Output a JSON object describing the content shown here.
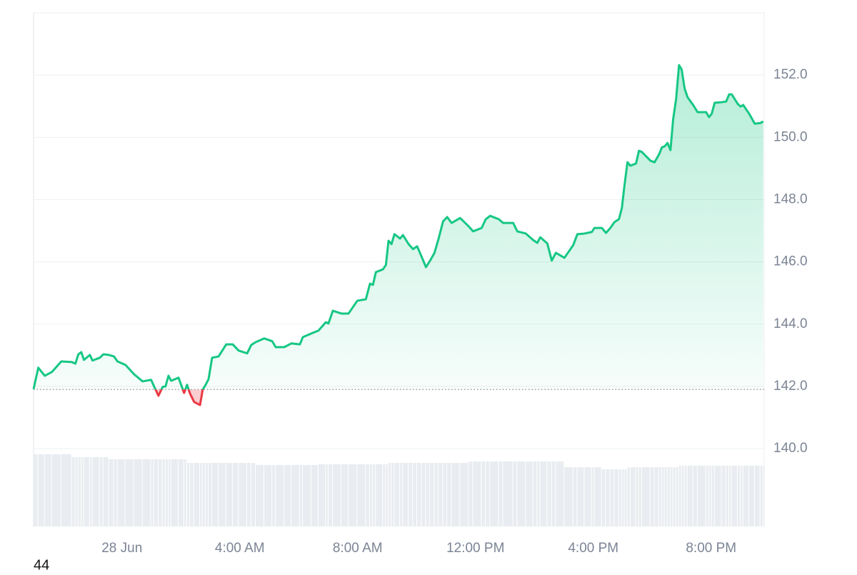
{
  "chart_data": {
    "type": "line",
    "x": [
      -3.0,
      -2.84,
      -2.62,
      -2.38,
      -2.06,
      -1.7,
      -1.58,
      -1.48,
      -1.38,
      -1.29,
      -1.09,
      -1.0,
      -0.75,
      -0.63,
      -0.44,
      -0.27,
      -0.15,
      0.12,
      0.41,
      0.7,
      0.99,
      1.09,
      1.24,
      1.38,
      1.48,
      1.58,
      1.67,
      1.92,
      2.11,
      2.21,
      2.31,
      2.45,
      2.65,
      2.74,
      2.84,
      2.94,
      3.06,
      3.28,
      3.54,
      3.76,
      3.96,
      4.25,
      4.39,
      4.54,
      4.83,
      5.1,
      5.22,
      5.51,
      5.75,
      6.04,
      6.14,
      6.43,
      6.67,
      6.92,
      7.01,
      7.16,
      7.45,
      7.69,
      7.99,
      8.28,
      8.42,
      8.52,
      8.62,
      8.86,
      8.96,
      9.05,
      9.15,
      9.25,
      9.44,
      9.54,
      9.73,
      9.88,
      10.02,
      10.17,
      10.32,
      10.46,
      10.61,
      10.75,
      10.9,
      11.04,
      11.19,
      11.48,
      11.77,
      11.92,
      12.21,
      12.35,
      12.5,
      12.79,
      12.94,
      13.28,
      13.42,
      13.71,
      13.96,
      14.1,
      14.2,
      14.44,
      14.59,
      14.73,
      15.02,
      15.32,
      15.46,
      15.7,
      15.95,
      16.04,
      16.29,
      16.43,
      16.58,
      16.72,
      16.87,
      16.97,
      17.06,
      17.16,
      17.26,
      17.45,
      17.55,
      17.65,
      17.94,
      18.08,
      18.23,
      18.33,
      18.42,
      18.52,
      18.62,
      18.71,
      18.81,
      18.91,
      19.0,
      19.1,
      19.2,
      19.39,
      19.54,
      19.83,
      19.93,
      20.02,
      20.12,
      20.36,
      20.51,
      20.61,
      20.7,
      20.9,
      21.0,
      21.09,
      21.29,
      21.48,
      21.67,
      21.77
    ],
    "values": [
      141.91,
      142.6,
      142.34,
      142.46,
      142.8,
      142.78,
      142.73,
      143.03,
      143.1,
      142.85,
      143.01,
      142.83,
      142.92,
      143.03,
      143.01,
      142.96,
      142.8,
      142.69,
      142.39,
      142.16,
      142.21,
      142.0,
      141.7,
      141.98,
      142.0,
      142.34,
      142.18,
      142.28,
      141.79,
      142.05,
      141.77,
      141.5,
      141.4,
      141.89,
      142.05,
      142.23,
      142.92,
      142.96,
      143.35,
      143.35,
      143.15,
      143.06,
      143.33,
      143.42,
      143.54,
      143.45,
      143.26,
      143.26,
      143.38,
      143.35,
      143.58,
      143.7,
      143.79,
      144.06,
      144.02,
      144.43,
      144.34,
      144.34,
      144.75,
      144.8,
      145.3,
      145.26,
      145.67,
      145.76,
      145.9,
      146.68,
      146.57,
      146.89,
      146.75,
      146.86,
      146.57,
      146.41,
      146.5,
      146.17,
      145.83,
      146.04,
      146.29,
      146.75,
      147.3,
      147.44,
      147.25,
      147.41,
      147.14,
      146.98,
      147.09,
      147.37,
      147.48,
      147.37,
      147.25,
      147.25,
      146.98,
      146.91,
      146.7,
      146.61,
      146.79,
      146.59,
      146.04,
      146.29,
      146.13,
      146.54,
      146.89,
      146.91,
      146.96,
      147.09,
      147.09,
      146.93,
      147.09,
      147.28,
      147.37,
      147.73,
      148.47,
      149.2,
      149.09,
      149.16,
      149.57,
      149.53,
      149.25,
      149.2,
      149.45,
      149.68,
      149.71,
      149.82,
      149.59,
      150.58,
      151.22,
      152.32,
      152.18,
      151.57,
      151.29,
      151.04,
      150.81,
      150.81,
      150.65,
      150.76,
      151.11,
      151.13,
      151.15,
      151.38,
      151.38,
      151.08,
      150.99,
      151.04,
      150.76,
      150.44,
      150.46,
      150.51
    ],
    "volume": [
      101,
      101,
      101,
      101,
      101,
      97,
      97,
      97,
      97,
      97,
      97,
      97,
      97,
      97,
      94,
      94,
      94,
      94,
      94,
      94,
      94,
      94,
      94,
      94,
      94,
      94,
      94,
      94,
      94,
      89,
      89,
      89,
      89,
      89,
      89,
      89,
      89,
      89,
      89,
      89,
      89,
      89,
      89,
      86,
      86,
      86,
      86,
      86,
      86,
      86,
      86,
      86,
      87,
      87,
      87,
      87,
      87,
      87,
      87,
      87,
      87,
      87,
      87,
      87,
      87,
      89,
      89,
      89,
      89,
      89,
      89,
      89,
      89,
      89,
      89,
      89,
      89,
      89,
      89,
      89,
      89,
      89,
      91,
      91,
      91,
      91,
      91,
      91,
      91,
      91,
      91,
      91,
      91,
      91,
      91,
      91,
      91,
      91,
      83,
      83,
      83,
      83,
      83,
      83,
      80,
      80,
      80,
      80,
      80,
      80,
      80,
      83,
      83,
      83,
      83,
      83,
      83,
      83,
      83,
      83,
      83,
      83,
      83,
      83,
      83,
      85,
      85,
      85,
      85,
      85,
      85,
      85,
      85,
      85,
      85,
      85,
      85,
      85,
      85,
      85,
      85,
      85,
      85,
      85,
      85,
      85
    ],
    "baseline": 141.9,
    "color": "#16c784",
    "below_color": "#ea3943",
    "volume_color": "#e9ecf0",
    "xlim": [
      -3.0,
      21.8
    ],
    "xticks": [
      {
        "value": 0,
        "label": "28 Jun"
      },
      {
        "value": 4,
        "label": "4:00 AM"
      },
      {
        "value": 8,
        "label": "8:00 AM"
      },
      {
        "value": 12,
        "label": "12:00 PM"
      },
      {
        "value": 16,
        "label": "4:00 PM"
      },
      {
        "value": 20,
        "label": "8:00 PM"
      }
    ],
    "ylim": [
      137.5,
      154
    ],
    "yticks": [
      {
        "value": 140,
        "label": "140.0"
      },
      {
        "value": 142,
        "label": "142.0"
      },
      {
        "value": 144,
        "label": "144.0"
      },
      {
        "value": 146,
        "label": "146.0"
      },
      {
        "value": 148,
        "label": "148.0"
      },
      {
        "value": 150,
        "label": "150.0"
      },
      {
        "value": 152,
        "label": "152.0"
      }
    ],
    "grid": true,
    "footnote": "44"
  }
}
